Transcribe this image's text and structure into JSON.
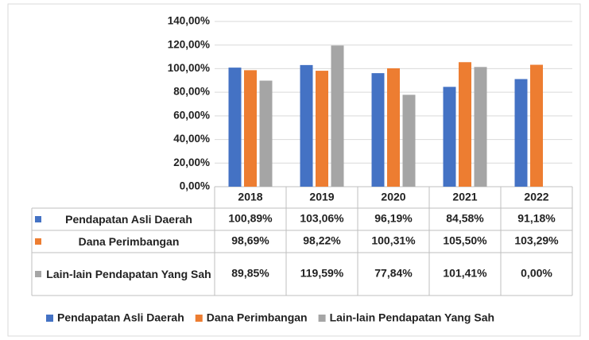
{
  "chart_data": {
    "type": "bar",
    "categories": [
      "2018",
      "2019",
      "2020",
      "2021",
      "2022"
    ],
    "series": [
      {
        "name": "Pendapatan Asli Daerah",
        "color": "#4472c4",
        "values": [
          100.89,
          103.06,
          96.19,
          84.58,
          91.18
        ],
        "value_labels": [
          "100,89%",
          "103,06%",
          "96,19%",
          "84,58%",
          "91,18%"
        ]
      },
      {
        "name": "Dana Perimbangan",
        "color": "#ed7d31",
        "values": [
          98.69,
          98.22,
          100.31,
          105.5,
          103.29
        ],
        "value_labels": [
          "98,69%",
          "98,22%",
          "100,31%",
          "105,50%",
          "103,29%"
        ]
      },
      {
        "name": "Lain-lain Pendapatan Yang Sah",
        "color": "#a5a5a5",
        "values": [
          89.85,
          119.59,
          77.84,
          101.41,
          0
        ],
        "value_labels": [
          "89,85%",
          "119,59%",
          "77,84%",
          "101,41%",
          "0,00%"
        ]
      }
    ],
    "ylim": [
      0,
      140
    ],
    "yticks": [
      {
        "value": 0,
        "label": "0,00%"
      },
      {
        "value": 20,
        "label": "20,00%"
      },
      {
        "value": 40,
        "label": "40,00%"
      },
      {
        "value": 60,
        "label": "60,00%"
      },
      {
        "value": 80,
        "label": "80,00%"
      },
      {
        "value": 100,
        "label": "100,00%"
      },
      {
        "value": 120,
        "label": "120,00%"
      },
      {
        "value": 140,
        "label": "140,00%"
      }
    ],
    "grid": true,
    "legend": "bottom"
  }
}
